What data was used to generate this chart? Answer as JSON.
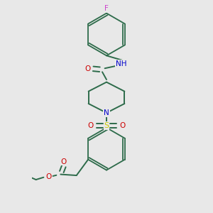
{
  "background_color": "#e8e8e8",
  "bond_color": "#2d6b4a",
  "atom_colors": {
    "F": "#cc44cc",
    "O": "#cc0000",
    "N": "#0000cc",
    "S": "#cccc00",
    "C": "#2d6b4a"
  },
  "figsize": [
    3.0,
    3.0
  ],
  "dpi": 100,
  "xlim": [
    0.15,
    0.85
  ],
  "ylim": [
    0.02,
    1.02
  ]
}
